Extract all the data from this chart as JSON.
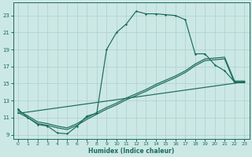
{
  "xlabel": "Humidex (Indice chaleur)",
  "bg_color": "#cce8e4",
  "grid_color": "#aad0cc",
  "line_color": "#1a6b5a",
  "xlim": [
    -0.5,
    23.5
  ],
  "ylim": [
    8.5,
    24.5
  ],
  "xticks": [
    0,
    1,
    2,
    3,
    4,
    5,
    6,
    7,
    8,
    9,
    10,
    11,
    12,
    13,
    14,
    15,
    16,
    17,
    18,
    19,
    20,
    21,
    22,
    23
  ],
  "yticks": [
    9,
    11,
    13,
    15,
    17,
    19,
    21,
    23
  ],
  "main_x": [
    0,
    1,
    2,
    3,
    4,
    5,
    6,
    7,
    8,
    9,
    10,
    11,
    12,
    13,
    14,
    15,
    16,
    17,
    18,
    19,
    20,
    21,
    22,
    23
  ],
  "main_y": [
    12.0,
    11.0,
    10.2,
    10.0,
    9.2,
    9.1,
    10.0,
    11.2,
    11.5,
    19.0,
    21.0,
    22.0,
    23.5,
    23.2,
    23.2,
    23.1,
    23.0,
    22.5,
    18.5,
    18.5,
    17.2,
    16.5,
    15.2,
    15.2
  ],
  "line2_x": [
    0,
    1,
    2,
    3,
    4,
    5,
    6,
    7,
    8,
    9,
    10,
    11,
    12,
    13,
    14,
    15,
    16,
    17,
    18,
    19,
    20,
    21,
    22,
    23
  ],
  "line2_y": [
    11.8,
    11.2,
    10.5,
    10.3,
    10.0,
    9.8,
    10.3,
    11.0,
    11.6,
    12.2,
    12.7,
    13.3,
    13.8,
    14.3,
    14.9,
    15.4,
    15.9,
    16.5,
    17.3,
    17.9,
    18.0,
    18.1,
    15.3,
    15.3
  ],
  "line3_x": [
    0,
    1,
    2,
    3,
    4,
    5,
    6,
    7,
    8,
    9,
    10,
    11,
    12,
    13,
    14,
    15,
    16,
    17,
    18,
    19,
    20,
    21,
    22,
    23
  ],
  "line3_y": [
    11.6,
    11.0,
    10.3,
    10.1,
    9.8,
    9.6,
    10.1,
    10.8,
    11.4,
    12.0,
    12.5,
    13.1,
    13.6,
    14.1,
    14.7,
    15.2,
    15.7,
    16.3,
    17.1,
    17.7,
    17.8,
    17.9,
    15.1,
    15.1
  ],
  "line4_x": [
    0,
    23
  ],
  "line4_y": [
    11.5,
    15.2
  ]
}
